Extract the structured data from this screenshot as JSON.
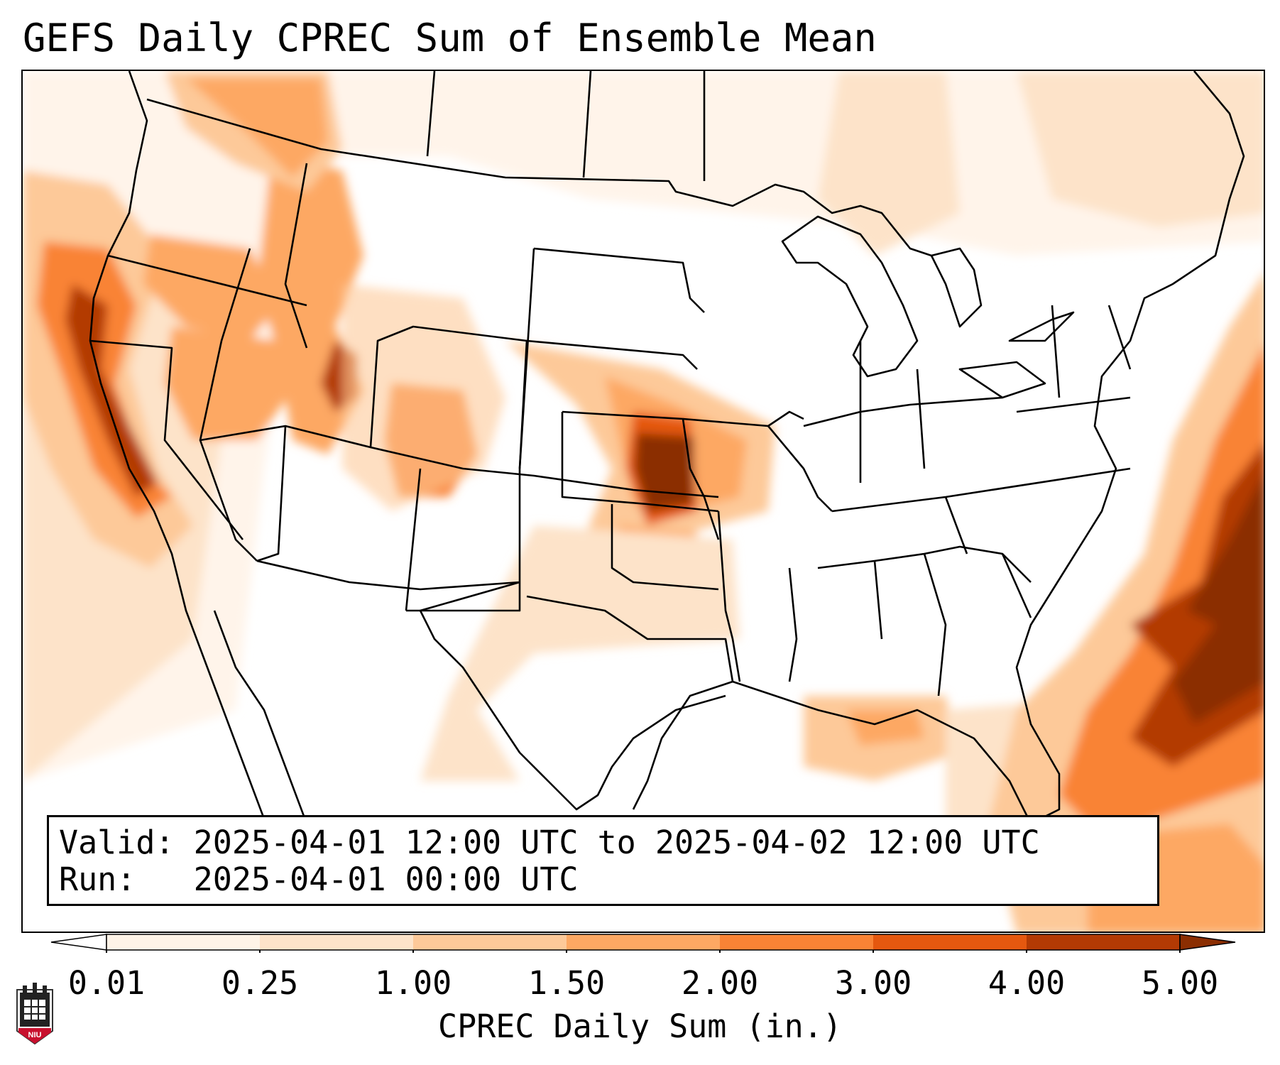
{
  "title": "GEFS Daily CPREC Sum of Ensemble Mean",
  "info": {
    "valid_line": "Valid: 2025-04-01 12:00 UTC to 2025-04-02 12:00 UTC",
    "run_line": "Run:   2025-04-01 00:00 UTC"
  },
  "colorbar": {
    "label": "CPREC Daily Sum (in.)",
    "ticks": [
      "0.01",
      "0.25",
      "1.00",
      "1.50",
      "2.00",
      "3.00",
      "4.00",
      "5.00"
    ],
    "colors": [
      "#fef3e7",
      "#fde3c9",
      "#fdc999",
      "#fda863",
      "#f98335",
      "#e5580f",
      "#b33a04"
    ],
    "under_color": "#ffffff",
    "over_color": "#8b2e02",
    "extend": "both"
  },
  "logo": {
    "text": "NIU",
    "colors": {
      "shield": "#c8102e",
      "tower": "#222222"
    }
  },
  "map": {
    "region": "Continental United States",
    "variable": "CPREC daily sum (in.)",
    "colors": {
      "border": "#000000"
    }
  }
}
